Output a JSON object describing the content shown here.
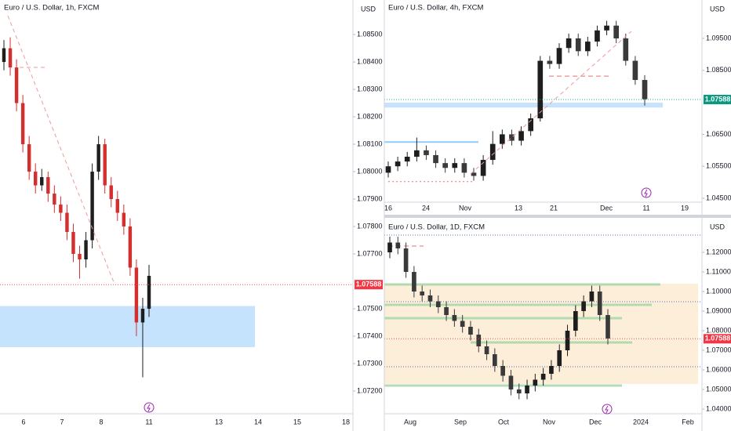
{
  "chart_data": [
    {
      "type": "candlestick",
      "title": "Euro / U.S. Dollar, 1h, FXCM",
      "currency": "USD",
      "up_color": "#1e1e1e",
      "down_color": "#d32f2f",
      "open": [
        1.084,
        1.0845,
        1.0838,
        1.0825,
        1.081,
        1.08,
        1.0795,
        1.0798,
        1.0792,
        1.0788,
        1.0785,
        1.0778,
        1.077,
        1.0768,
        1.0775,
        1.08,
        1.081,
        1.0795,
        1.079,
        1.0785,
        1.078,
        1.0765,
        1.0745,
        1.075
      ],
      "high": [
        1.0848,
        1.0849,
        1.0841,
        1.0828,
        1.0813,
        1.0803,
        1.0801,
        1.08,
        1.0795,
        1.0791,
        1.0788,
        1.0781,
        1.0773,
        1.0778,
        1.0803,
        1.0813,
        1.0812,
        1.0798,
        1.0793,
        1.0788,
        1.0783,
        1.0768,
        1.0754,
        1.0766
      ],
      "low": [
        1.0837,
        1.0835,
        1.0822,
        1.0807,
        1.0797,
        1.0792,
        1.0793,
        1.0789,
        1.0785,
        1.0782,
        1.0775,
        1.0767,
        1.0761,
        1.0765,
        1.0772,
        1.0797,
        1.0792,
        1.0787,
        1.0782,
        1.0777,
        1.0762,
        1.074,
        1.0725,
        1.0747
      ],
      "close": [
        1.0845,
        1.0838,
        1.0825,
        1.081,
        1.08,
        1.0795,
        1.0798,
        1.0792,
        1.0788,
        1.0785,
        1.0778,
        1.077,
        1.0768,
        1.0775,
        1.08,
        1.081,
        1.0795,
        1.079,
        1.0785,
        1.078,
        1.0765,
        1.0745,
        1.075,
        1.0762
      ],
      "ylim": [
        1.07117,
        1.08626
      ],
      "yticks": [
        {
          "value": 1.085,
          "label": "1.08500"
        },
        {
          "value": 1.084,
          "label": "1.08400"
        },
        {
          "value": 1.083,
          "label": "1.08300"
        },
        {
          "value": 1.082,
          "label": "1.08200"
        },
        {
          "value": 1.081,
          "label": "1.08100"
        },
        {
          "value": 1.08,
          "label": "1.08000"
        },
        {
          "value": 1.079,
          "label": "1.07900"
        },
        {
          "value": 1.078,
          "label": "1.07800"
        },
        {
          "value": 1.077,
          "label": "1.07700"
        },
        {
          "value": 1.075,
          "label": "1.07500"
        },
        {
          "value": 1.074,
          "label": "1.07400"
        },
        {
          "value": 1.073,
          "label": "1.07300"
        },
        {
          "value": 1.072,
          "label": "1.07200"
        }
      ],
      "last_price": {
        "value": 1.07588,
        "label": "1.07588"
      },
      "x_labels": [
        "6",
        "7",
        "8",
        "11",
        "13",
        "14",
        "15",
        "18"
      ],
      "zones": [
        {
          "from": 1.0751,
          "to": 1.0736,
          "color": "#bbdefb"
        }
      ]
    },
    {
      "type": "candlestick",
      "title": "Euro / U.S. Dollar, 4h, FXCM",
      "currency": "USD",
      "up_color": "#1e1e1e",
      "down_color": "#3a3a3a",
      "open": [
        1.053,
        1.055,
        1.0565,
        1.058,
        1.06,
        1.0585,
        1.056,
        1.0545,
        1.056,
        1.053,
        1.052,
        1.057,
        1.062,
        1.065,
        1.063,
        1.066,
        1.07,
        1.088,
        1.087,
        1.092,
        1.095,
        1.091,
        1.094,
        1.0975,
        1.099,
        1.095,
        1.088,
        1.082
      ],
      "high": [
        1.0565,
        1.058,
        1.0595,
        1.064,
        1.0615,
        1.06,
        1.0575,
        1.0575,
        1.0575,
        1.0545,
        1.0585,
        1.066,
        1.0665,
        1.0665,
        1.0675,
        1.0715,
        1.0895,
        1.0895,
        1.0935,
        1.0965,
        1.0965,
        1.0955,
        1.099,
        1.1005,
        1.1005,
        1.0965,
        1.0895,
        1.0835
      ],
      "low": [
        1.0515,
        1.0535,
        1.055,
        1.0565,
        1.057,
        1.0545,
        1.053,
        1.053,
        1.0515,
        1.0505,
        1.0505,
        1.0555,
        1.0605,
        1.0615,
        1.0615,
        1.0645,
        1.069,
        1.0855,
        1.0855,
        1.0905,
        1.0895,
        1.0895,
        1.0925,
        1.096,
        1.0935,
        1.0865,
        1.0805,
        1.074
      ],
      "close": [
        1.055,
        1.0565,
        1.058,
        1.06,
        1.0585,
        1.056,
        1.0545,
        1.056,
        1.053,
        1.052,
        1.057,
        1.062,
        1.065,
        1.063,
        1.066,
        1.07,
        1.088,
        1.087,
        1.092,
        1.095,
        1.091,
        1.094,
        1.0975,
        1.099,
        1.095,
        1.088,
        1.082,
        1.076
      ],
      "ylim": [
        1.04378,
        1.10701
      ],
      "yticks": [
        {
          "value": 1.095,
          "label": "1.09500"
        },
        {
          "value": 1.085,
          "label": "1.08500"
        },
        {
          "value": 1.065,
          "label": "1.06500"
        },
        {
          "value": 1.055,
          "label": "1.05500"
        },
        {
          "value": 1.045,
          "label": "1.04500"
        }
      ],
      "last_price": {
        "value": 1.07588,
        "label": "1.07588"
      },
      "x_labels": [
        "16",
        "24",
        "Nov",
        "13",
        "21",
        "Dec",
        "11",
        "19"
      ],
      "zones": [
        {
          "from": 1.0749,
          "to": 1.0734,
          "color": "#bbdefb"
        }
      ],
      "levels": [
        {
          "value": 1.0626,
          "color": "#90caf9"
        },
        {
          "value": 1.0832,
          "color": "#e57373"
        },
        {
          "value": 1.0502,
          "color": "#e57373"
        }
      ]
    },
    {
      "type": "candlestick",
      "title": "Euro / U.S. Dollar, 1D, FXCM",
      "currency": "USD",
      "up_color": "#1e1e1e",
      "down_color": "#3a3a3a",
      "open": [
        1.12,
        1.125,
        1.122,
        1.11,
        1.1,
        1.098,
        1.095,
        1.092,
        1.088,
        1.085,
        1.082,
        1.078,
        1.072,
        1.068,
        1.062,
        1.057,
        1.05,
        1.048,
        1.052,
        1.055,
        1.058,
        1.062,
        1.07,
        1.08,
        1.09,
        1.095,
        1.1,
        1.088
      ],
      "high": [
        1.128,
        1.128,
        1.125,
        1.113,
        1.103,
        1.101,
        1.098,
        1.095,
        1.091,
        1.088,
        1.085,
        1.081,
        1.075,
        1.071,
        1.065,
        1.06,
        1.053,
        1.055,
        1.058,
        1.061,
        1.065,
        1.073,
        1.083,
        1.093,
        1.098,
        1.103,
        1.103,
        1.091
      ],
      "low": [
        1.117,
        1.119,
        1.107,
        1.097,
        1.095,
        1.092,
        1.089,
        1.085,
        1.082,
        1.079,
        1.075,
        1.069,
        1.065,
        1.059,
        1.054,
        1.047,
        1.045,
        1.045,
        1.049,
        1.052,
        1.055,
        1.059,
        1.067,
        1.077,
        1.087,
        1.092,
        1.085,
        1.073
      ],
      "close": [
        1.125,
        1.122,
        1.11,
        1.1,
        1.098,
        1.095,
        1.092,
        1.088,
        1.085,
        1.082,
        1.078,
        1.072,
        1.068,
        1.062,
        1.057,
        1.05,
        1.048,
        1.052,
        1.055,
        1.058,
        1.062,
        1.07,
        1.08,
        1.09,
        1.095,
        1.1,
        1.088,
        1.076
      ],
      "ylim": [
        1.0376,
        1.136
      ],
      "yticks": [
        {
          "value": 1.12,
          "label": "1.12000"
        },
        {
          "value": 1.11,
          "label": "1.11000"
        },
        {
          "value": 1.1,
          "label": "1.10000"
        },
        {
          "value": 1.09,
          "label": "1.09000"
        },
        {
          "value": 1.08,
          "label": "1.08000"
        },
        {
          "value": 1.07,
          "label": "1.07000"
        },
        {
          "value": 1.06,
          "label": "1.06000"
        },
        {
          "value": 1.05,
          "label": "1.05000"
        },
        {
          "value": 1.04,
          "label": "1.04000"
        }
      ],
      "last_price": {
        "value": 1.07588,
        "label": "1.07588"
      },
      "x_labels": [
        "Aug",
        "Sep",
        "Oct",
        "Nov",
        "Dec",
        "2024",
        "Feb"
      ],
      "zones": [
        {
          "from": 1.104,
          "to": 1.0528,
          "color": "#fdebd3"
        },
        {
          "from": 1.1042,
          "to": 1.103,
          "color": "#a5d6a7"
        },
        {
          "from": 1.0938,
          "to": 1.0926,
          "color": "#a5d6a7"
        },
        {
          "from": 1.087,
          "to": 1.0858,
          "color": "#a5d6a7"
        },
        {
          "from": 1.0746,
          "to": 1.0734,
          "color": "#a5d6a7"
        },
        {
          "from": 1.0526,
          "to": 1.0514,
          "color": "#a5d6a7"
        }
      ],
      "levels": [
        {
          "value": 1.1288,
          "color": "#5c6bc0"
        },
        {
          "value": 1.0948,
          "color": "#5c6bc0"
        },
        {
          "value": 1.0616,
          "color": "#5c6bc0"
        },
        {
          "value": 1.1232,
          "color": "#e57373"
        }
      ]
    }
  ]
}
